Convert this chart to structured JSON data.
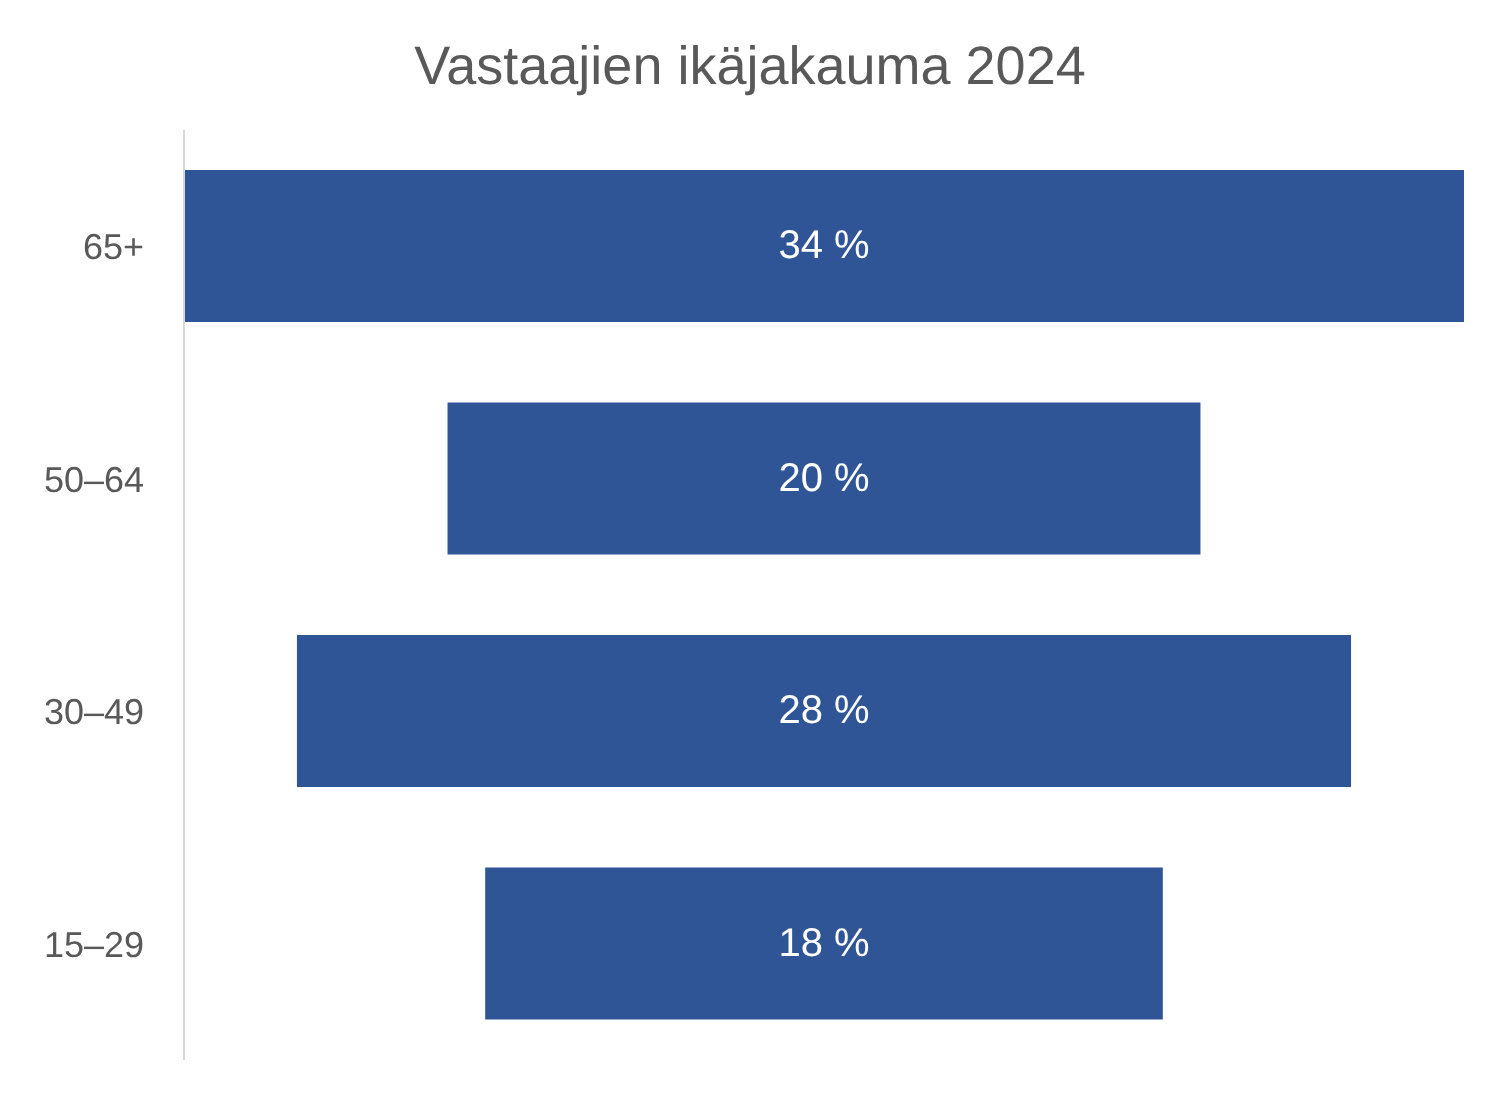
{
  "chart_data": {
    "type": "other",
    "title": "Vastaajien ikäjakauma 2024",
    "categories": [
      "65+",
      "50–64",
      "30–49",
      "15–29"
    ],
    "values": [
      34,
      20,
      28,
      18
    ],
    "value_labels": [
      "34 %",
      "20 %",
      "28 %",
      "18 %"
    ],
    "color": "#2f5597"
  }
}
